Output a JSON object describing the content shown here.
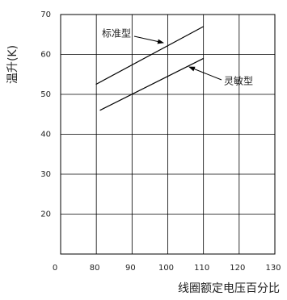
{
  "chart_data": {
    "type": "line",
    "y_label": "温升(K)",
    "x_label": "线圈额定电压百分比",
    "xticks": [
      0,
      80,
      90,
      100,
      110,
      120,
      130
    ],
    "xlim": [
      0,
      130
    ],
    "ylim": [
      10,
      70
    ],
    "yticks": [
      20,
      30,
      40,
      50,
      60,
      70
    ],
    "grid": true,
    "series": [
      {
        "color": "#000000",
        "x": [
          79,
          110
        ],
        "values": [
          52.5,
          67
        ]
      },
      {
        "color": "#000000",
        "x": [
          81,
          110
        ],
        "values": [
          46,
          59
        ]
      }
    ],
    "annotations": [
      "标准型",
      "灵敏型"
    ]
  }
}
